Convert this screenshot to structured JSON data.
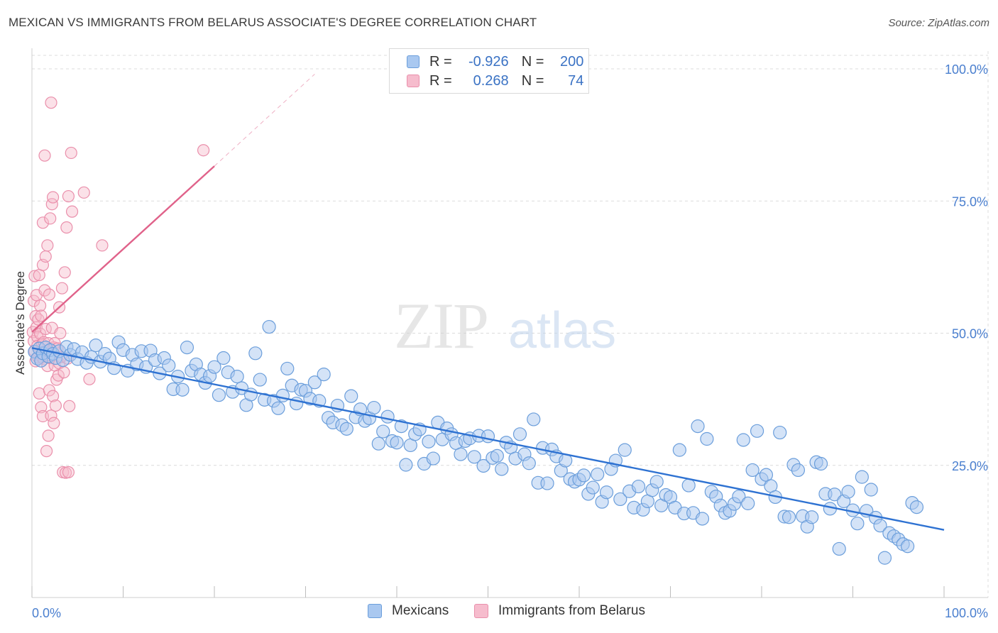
{
  "title": "MEXICAN VS IMMIGRANTS FROM BELARUS ASSOCIATE'S DEGREE CORRELATION CHART",
  "source": "Source: ZipAtlas.com",
  "watermark": {
    "part1": "ZIP",
    "part2": "atlas"
  },
  "legend_top": {
    "rows": [
      {
        "r_label": "R =",
        "r_value": "-0.926",
        "n_label": "N =",
        "n_value": "200"
      },
      {
        "r_label": "R =",
        "r_value": "0.268",
        "n_label": "N =",
        "n_value": "74"
      }
    ]
  },
  "legend_bottom": [
    {
      "label": "Mexicans"
    },
    {
      "label": "Immigrants from Belarus"
    }
  ],
  "colors": {
    "blue_fill": "#a9c8f0",
    "blue_stroke": "#6b9edb",
    "blue_line": "#2e72d2",
    "pink_fill": "#f6bccd",
    "pink_stroke": "#ea8fab",
    "pink_line": "#e0628a",
    "tick_label": "#4a7fcf",
    "grid": "#dcdcdc"
  },
  "chart_data": {
    "type": "scatter",
    "title": "MEXICAN VS IMMIGRANTS FROM BELARUS ASSOCIATE'S DEGREE CORRELATION CHART",
    "xlabel": "",
    "ylabel": "Associate's Degree",
    "xlim": [
      0,
      100
    ],
    "ylim": [
      0,
      100
    ],
    "x_tick_labels": [
      "0.0%",
      "100.0%"
    ],
    "y_ticks": [
      25,
      50,
      75,
      100
    ],
    "y_tick_labels": [
      "25.0%",
      "50.0%",
      "75.0%",
      "100.0%"
    ],
    "grid": true,
    "legend_position": "top-center",
    "series": [
      {
        "name": "Mexicans",
        "r": -0.926,
        "n": 200,
        "trend": {
          "x": [
            0,
            100
          ],
          "y": [
            47.2,
            12.8
          ]
        },
        "points": [
          [
            0.3,
            46.5
          ],
          [
            0.6,
            45.2
          ],
          [
            0.8,
            47.1
          ],
          [
            1.0,
            44.8
          ],
          [
            1.2,
            46.2
          ],
          [
            1.5,
            47.3
          ],
          [
            1.8,
            45.6
          ],
          [
            2.0,
            46.8
          ],
          [
            2.3,
            46.1
          ],
          [
            2.6,
            45.3
          ],
          [
            3.0,
            46.6
          ],
          [
            3.4,
            44.9
          ],
          [
            3.8,
            47.4
          ],
          [
            4.2,
            45.9
          ],
          [
            4.6,
            47.0
          ],
          [
            5.0,
            45.1
          ],
          [
            5.5,
            46.4
          ],
          [
            6.0,
            44.4
          ],
          [
            6.5,
            45.5
          ],
          [
            7.0,
            47.7
          ],
          [
            7.5,
            44.6
          ],
          [
            8.0,
            46.1
          ],
          [
            8.5,
            45.2
          ],
          [
            9.0,
            43.4
          ],
          [
            9.5,
            48.3
          ],
          [
            10.0,
            46.8
          ],
          [
            10.5,
            42.9
          ],
          [
            11.0,
            45.9
          ],
          [
            11.5,
            44.1
          ],
          [
            12.0,
            46.6
          ],
          [
            12.5,
            43.6
          ],
          [
            13.0,
            46.7
          ],
          [
            13.5,
            44.9
          ],
          [
            14.0,
            42.4
          ],
          [
            14.5,
            45.3
          ],
          [
            15.0,
            43.9
          ],
          [
            15.5,
            39.4
          ],
          [
            16.0,
            41.8
          ],
          [
            16.5,
            39.3
          ],
          [
            17.0,
            47.3
          ],
          [
            17.5,
            42.9
          ],
          [
            18.0,
            44.1
          ],
          [
            18.5,
            42.2
          ],
          [
            19.0,
            40.6
          ],
          [
            19.5,
            41.9
          ],
          [
            20.0,
            43.6
          ],
          [
            20.5,
            38.3
          ],
          [
            21.0,
            45.3
          ],
          [
            21.5,
            42.6
          ],
          [
            22.0,
            38.9
          ],
          [
            22.5,
            41.8
          ],
          [
            23.0,
            39.6
          ],
          [
            23.5,
            36.4
          ],
          [
            24.0,
            38.4
          ],
          [
            24.5,
            46.2
          ],
          [
            25.0,
            41.2
          ],
          [
            25.5,
            37.4
          ],
          [
            26.0,
            51.2
          ],
          [
            26.5,
            37.2
          ],
          [
            27.0,
            35.8
          ],
          [
            27.5,
            38.2
          ],
          [
            28.0,
            43.3
          ],
          [
            28.5,
            40.1
          ],
          [
            29.0,
            36.7
          ],
          [
            29.5,
            39.3
          ],
          [
            30.0,
            39.1
          ],
          [
            30.5,
            37.6
          ],
          [
            31.0,
            40.7
          ],
          [
            31.5,
            37.2
          ],
          [
            32.0,
            42.2
          ],
          [
            32.5,
            34.0
          ],
          [
            33.0,
            33.1
          ],
          [
            33.5,
            36.3
          ],
          [
            34.0,
            32.6
          ],
          [
            34.5,
            31.9
          ],
          [
            35.0,
            38.1
          ],
          [
            35.5,
            34.1
          ],
          [
            36.0,
            35.6
          ],
          [
            36.5,
            33.4
          ],
          [
            37.0,
            33.9
          ],
          [
            37.5,
            35.9
          ],
          [
            38.0,
            29.1
          ],
          [
            38.5,
            31.4
          ],
          [
            39.0,
            34.2
          ],
          [
            39.5,
            29.6
          ],
          [
            40.0,
            29.3
          ],
          [
            40.5,
            32.4
          ],
          [
            41.0,
            25.1
          ],
          [
            41.5,
            28.8
          ],
          [
            42.0,
            30.9
          ],
          [
            42.5,
            31.8
          ],
          [
            43.0,
            25.3
          ],
          [
            43.5,
            29.5
          ],
          [
            44.0,
            26.3
          ],
          [
            44.5,
            33.1
          ],
          [
            45.0,
            29.9
          ],
          [
            45.5,
            32.0
          ],
          [
            46.0,
            30.9
          ],
          [
            46.5,
            29.2
          ],
          [
            47.0,
            27.1
          ],
          [
            47.5,
            29.6
          ],
          [
            48.0,
            30.1
          ],
          [
            48.5,
            26.6
          ],
          [
            49.0,
            30.6
          ],
          [
            49.5,
            24.9
          ],
          [
            50.0,
            30.5
          ],
          [
            50.5,
            26.4
          ],
          [
            51.0,
            26.8
          ],
          [
            51.5,
            24.3
          ],
          [
            52.0,
            29.3
          ],
          [
            52.5,
            28.4
          ],
          [
            53.0,
            26.3
          ],
          [
            53.5,
            30.9
          ],
          [
            54.0,
            27.1
          ],
          [
            54.5,
            25.4
          ],
          [
            55.0,
            33.7
          ],
          [
            55.5,
            21.7
          ],
          [
            56.0,
            28.3
          ],
          [
            56.5,
            21.6
          ],
          [
            57.0,
            28.0
          ],
          [
            57.5,
            26.7
          ],
          [
            58.0,
            24.0
          ],
          [
            58.5,
            25.9
          ],
          [
            59.0,
            22.4
          ],
          [
            59.5,
            21.9
          ],
          [
            60.0,
            22.3
          ],
          [
            60.5,
            23.1
          ],
          [
            61.0,
            19.6
          ],
          [
            61.5,
            20.8
          ],
          [
            62.0,
            23.3
          ],
          [
            62.5,
            18.1
          ],
          [
            63.0,
            19.9
          ],
          [
            63.5,
            24.3
          ],
          [
            64.0,
            25.9
          ],
          [
            64.5,
            18.6
          ],
          [
            65.0,
            27.9
          ],
          [
            65.5,
            20.1
          ],
          [
            66.0,
            17.0
          ],
          [
            66.5,
            21.0
          ],
          [
            67.0,
            16.6
          ],
          [
            67.5,
            18.2
          ],
          [
            68.0,
            20.3
          ],
          [
            68.5,
            21.9
          ],
          [
            69.0,
            17.4
          ],
          [
            69.5,
            19.4
          ],
          [
            70.0,
            19.0
          ],
          [
            70.5,
            17.0
          ],
          [
            71.0,
            27.9
          ],
          [
            71.5,
            15.9
          ],
          [
            72.0,
            21.2
          ],
          [
            72.5,
            16.0
          ],
          [
            73.0,
            32.4
          ],
          [
            73.5,
            14.9
          ],
          [
            74.0,
            30.0
          ],
          [
            74.5,
            20.0
          ],
          [
            75.0,
            19.1
          ],
          [
            75.5,
            17.4
          ],
          [
            76.0,
            16.0
          ],
          [
            76.5,
            16.4
          ],
          [
            77.0,
            17.7
          ],
          [
            77.5,
            19.1
          ],
          [
            78.0,
            29.8
          ],
          [
            78.5,
            17.8
          ],
          [
            79.0,
            24.1
          ],
          [
            79.5,
            31.5
          ],
          [
            80.0,
            22.4
          ],
          [
            80.5,
            23.2
          ],
          [
            81.0,
            21.1
          ],
          [
            81.5,
            19.0
          ],
          [
            82.0,
            31.2
          ],
          [
            82.5,
            15.3
          ],
          [
            83.0,
            15.2
          ],
          [
            83.5,
            25.1
          ],
          [
            84.0,
            24.1
          ],
          [
            84.5,
            15.4
          ],
          [
            85.0,
            13.4
          ],
          [
            85.5,
            15.2
          ],
          [
            86.0,
            25.6
          ],
          [
            86.5,
            25.3
          ],
          [
            87.0,
            19.6
          ],
          [
            87.5,
            16.8
          ],
          [
            88.0,
            19.5
          ],
          [
            88.5,
            9.2
          ],
          [
            89.0,
            18.2
          ],
          [
            89.5,
            20.0
          ],
          [
            90.0,
            16.5
          ],
          [
            90.5,
            14.0
          ],
          [
            91.0,
            22.8
          ],
          [
            91.5,
            16.4
          ],
          [
            92.0,
            20.4
          ],
          [
            92.5,
            15.1
          ],
          [
            93.0,
            13.6
          ],
          [
            93.5,
            7.5
          ],
          [
            94.0,
            12.2
          ],
          [
            94.5,
            11.6
          ],
          [
            95.0,
            11.0
          ],
          [
            95.5,
            10.1
          ],
          [
            96.0,
            9.7
          ],
          [
            96.5,
            17.9
          ],
          [
            97.0,
            17.1
          ]
        ]
      },
      {
        "name": "Immigrants from Belarus",
        "r": 0.268,
        "n": 74,
        "trend": {
          "x": [
            0,
            20
          ],
          "y": [
            50.2,
            81.6
          ]
        },
        "trend_extended": {
          "x": [
            20,
            31
          ],
          "y": [
            81.6,
            99.0
          ]
        },
        "points": [
          [
            0.1,
            50.2
          ],
          [
            0.2,
            56.1
          ],
          [
            0.2,
            48.5
          ],
          [
            0.3,
            60.8
          ],
          [
            0.3,
            46.6
          ],
          [
            0.4,
            53.2
          ],
          [
            0.4,
            44.7
          ],
          [
            0.5,
            51.1
          ],
          [
            0.5,
            57.2
          ],
          [
            0.6,
            49.3
          ],
          [
            0.6,
            47.6
          ],
          [
            0.7,
            52.6
          ],
          [
            0.7,
            45.4
          ],
          [
            0.8,
            61.0
          ],
          [
            0.8,
            38.6
          ],
          [
            0.9,
            49.9
          ],
          [
            0.9,
            55.2
          ],
          [
            1.0,
            36.0
          ],
          [
            1.0,
            53.3
          ],
          [
            1.1,
            45.4
          ],
          [
            1.1,
            47.9
          ],
          [
            1.2,
            70.9
          ],
          [
            1.2,
            62.9
          ],
          [
            1.2,
            34.3
          ],
          [
            1.3,
            45.1
          ],
          [
            1.3,
            48.3
          ],
          [
            1.4,
            58.1
          ],
          [
            1.4,
            83.6
          ],
          [
            1.5,
            64.5
          ],
          [
            1.5,
            50.8
          ],
          [
            1.6,
            46.6
          ],
          [
            1.6,
            27.7
          ],
          [
            1.7,
            66.6
          ],
          [
            1.7,
            43.8
          ],
          [
            1.8,
            30.6
          ],
          [
            1.8,
            48.1
          ],
          [
            1.9,
            57.3
          ],
          [
            1.9,
            39.2
          ],
          [
            2.0,
            71.7
          ],
          [
            2.0,
            45.3
          ],
          [
            2.1,
            34.4
          ],
          [
            2.1,
            93.6
          ],
          [
            2.2,
            74.4
          ],
          [
            2.2,
            51.0
          ],
          [
            2.3,
            38.1
          ],
          [
            2.3,
            75.7
          ],
          [
            2.4,
            47.3
          ],
          [
            2.4,
            33.0
          ],
          [
            2.5,
            43.9
          ],
          [
            2.5,
            48.1
          ],
          [
            2.6,
            36.3
          ],
          [
            2.7,
            41.2
          ],
          [
            2.8,
            47.1
          ],
          [
            2.9,
            42.0
          ],
          [
            3.0,
            44.3
          ],
          [
            3.0,
            54.9
          ],
          [
            3.1,
            50.0
          ],
          [
            3.2,
            45.5
          ],
          [
            3.3,
            58.5
          ],
          [
            3.4,
            23.7
          ],
          [
            3.5,
            42.6
          ],
          [
            3.6,
            61.5
          ],
          [
            3.7,
            23.6
          ],
          [
            3.8,
            70.0
          ],
          [
            3.9,
            45.2
          ],
          [
            4.0,
            75.9
          ],
          [
            4.0,
            23.7
          ],
          [
            4.1,
            36.2
          ],
          [
            4.3,
            84.1
          ],
          [
            4.4,
            73.0
          ],
          [
            5.7,
            76.6
          ],
          [
            6.3,
            41.3
          ],
          [
            7.7,
            66.6
          ],
          [
            18.8,
            84.6
          ]
        ]
      }
    ]
  }
}
